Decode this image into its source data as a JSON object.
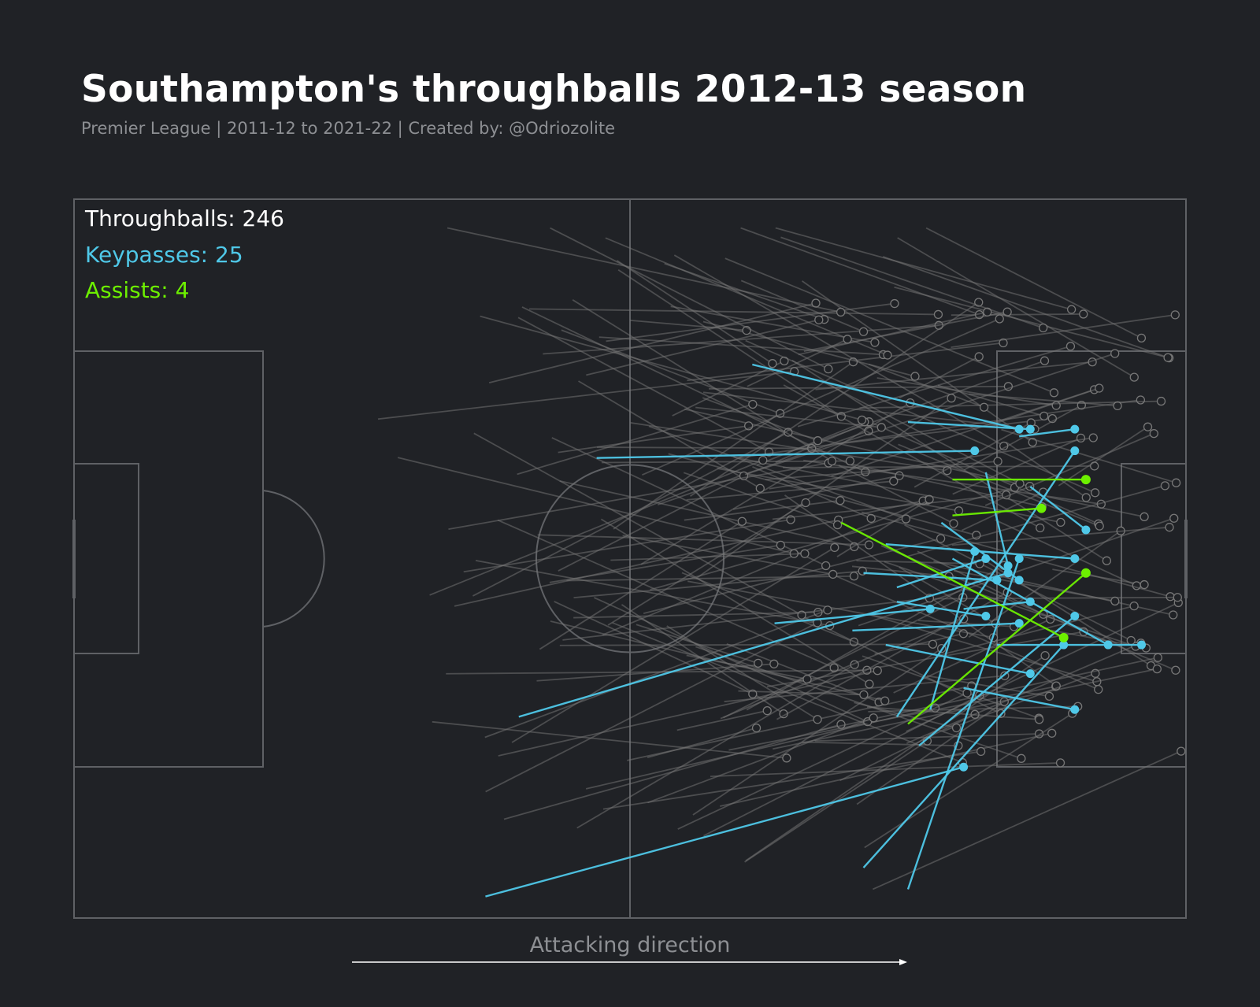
{
  "title": "Southampton's throughballs 2012-13 season",
  "subtitle": "Premier League | 2011-12 to 2021-22 | Created by: @Odriozolite",
  "colors": {
    "background": "#202226",
    "pitch_lines": "#5f6165",
    "throughball": "#777777",
    "keypass": "#4fc8e8",
    "assist": "#6df000",
    "title": "#ffffff",
    "subtitle": "#8d8f93"
  },
  "chart_data": {
    "type": "scatter",
    "description_units": "pitch coordinates 0-100 (x: attacking left to right, y: top to bottom)",
    "legend": [
      {
        "key": "throughballs",
        "label": "Throughballs: 246",
        "count": 246
      },
      {
        "key": "keypasses",
        "label": "Keypasses: 25",
        "count": 25
      },
      {
        "key": "assists",
        "label": "Assists: 4",
        "count": 4
      }
    ],
    "direction_label": "Attacking direction",
    "throughballs_total": 246,
    "keypasses": [
      {
        "x1": 61,
        "y1": 23,
        "x2": 85,
        "y2": 32
      },
      {
        "x1": 75,
        "y1": 31,
        "x2": 86,
        "y2": 32
      },
      {
        "x1": 85,
        "y1": 33,
        "x2": 90,
        "y2": 32
      },
      {
        "x1": 47,
        "y1": 36,
        "x2": 81,
        "y2": 35
      },
      {
        "x1": 74,
        "y1": 54,
        "x2": 82,
        "y2": 50
      },
      {
        "x1": 82,
        "y1": 38,
        "x2": 84,
        "y2": 51
      },
      {
        "x1": 86,
        "y1": 40,
        "x2": 91,
        "y2": 46
      },
      {
        "x1": 73,
        "y1": 48,
        "x2": 90,
        "y2": 50
      },
      {
        "x1": 78,
        "y1": 45,
        "x2": 85,
        "y2": 53
      },
      {
        "x1": 79,
        "y1": 50,
        "x2": 93,
        "y2": 62
      },
      {
        "x1": 83,
        "y1": 62,
        "x2": 96,
        "y2": 62
      },
      {
        "x1": 63,
        "y1": 59,
        "x2": 77,
        "y2": 57
      },
      {
        "x1": 40,
        "y1": 72,
        "x2": 84,
        "y2": 52
      },
      {
        "x1": 74,
        "y1": 72,
        "x2": 90,
        "y2": 35
      },
      {
        "x1": 77,
        "y1": 71,
        "x2": 81,
        "y2": 49
      },
      {
        "x1": 73,
        "y1": 62,
        "x2": 86,
        "y2": 66
      },
      {
        "x1": 80,
        "y1": 68,
        "x2": 90,
        "y2": 71
      },
      {
        "x1": 76,
        "y1": 76,
        "x2": 90,
        "y2": 58
      },
      {
        "x1": 75,
        "y1": 96,
        "x2": 85,
        "y2": 50
      },
      {
        "x1": 71,
        "y1": 93,
        "x2": 89,
        "y2": 62
      },
      {
        "x1": 37,
        "y1": 97,
        "x2": 80,
        "y2": 79
      },
      {
        "x1": 80,
        "y1": 57,
        "x2": 86,
        "y2": 56
      },
      {
        "x1": 74,
        "y1": 56,
        "x2": 82,
        "y2": 58
      },
      {
        "x1": 71,
        "y1": 52,
        "x2": 83,
        "y2": 53
      },
      {
        "x1": 70,
        "y1": 60,
        "x2": 85,
        "y2": 59
      }
    ],
    "assists": [
      {
        "x1": 79,
        "y1": 39,
        "x2": 91,
        "y2": 39
      },
      {
        "x1": 79,
        "y1": 44,
        "x2": 87,
        "y2": 43
      },
      {
        "x1": 69,
        "y1": 45,
        "x2": 89,
        "y2": 61
      },
      {
        "x1": 75,
        "y1": 73,
        "x2": 91,
        "y2": 52
      }
    ]
  }
}
